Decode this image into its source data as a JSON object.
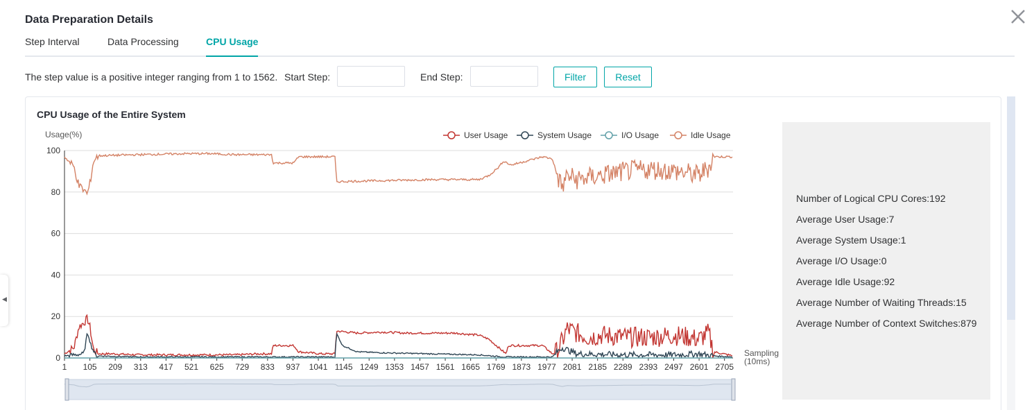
{
  "dialog": {
    "title": "Data Preparation Details",
    "close_icon": "close-icon"
  },
  "tabs": [
    {
      "label": "Step Interval",
      "active": false
    },
    {
      "label": "Data Processing",
      "active": false
    },
    {
      "label": "CPU Usage",
      "active": true
    }
  ],
  "filter": {
    "hint": "The step value is a positive integer ranging from 1 to 1562.",
    "start_label": "Start Step:",
    "start_value": "",
    "end_label": "End Step:",
    "end_value": "",
    "filter_button": "Filter",
    "reset_button": "Reset"
  },
  "card": {
    "title": "CPU Usage of the Entire System"
  },
  "info": [
    "Number of Logical CPU Cores:192",
    "Average User Usage:7",
    "Average System Usage:1",
    "Average I/O Usage:0",
    "Average Idle Usage:92",
    "Average Number of Waiting Threads:15",
    "Average Number of Context Switches:879"
  ],
  "colors": {
    "accent": "#00a5a7",
    "user": "#c23531",
    "system": "#2f4554",
    "io": "#61a0a8",
    "idle": "#d48265"
  },
  "chart_data": {
    "type": "line",
    "title": "",
    "ylabel": "Usage(%)",
    "xlabel": "Sampling\n(10ms)",
    "ylim": [
      0,
      100
    ],
    "yticks": [
      0,
      20,
      40,
      60,
      80,
      100
    ],
    "xlim": [
      1,
      2740
    ],
    "xticks": [
      1,
      105,
      209,
      313,
      417,
      521,
      625,
      729,
      833,
      937,
      1041,
      1145,
      1249,
      1353,
      1457,
      1561,
      1665,
      1769,
      1873,
      1977,
      2081,
      2185,
      2289,
      2393,
      2497,
      2601,
      2705
    ],
    "legend_position": "top-right",
    "grid": true,
    "series": [
      {
        "name": "User Usage",
        "color": "#c23531",
        "x": [
          1,
          40,
          60,
          80,
          95,
          105,
          120,
          140,
          200,
          300,
          400,
          500,
          600,
          700,
          800,
          850,
          855,
          940,
          960,
          1050,
          1100,
          1110,
          1115,
          1200,
          1300,
          1400,
          1500,
          1600,
          1700,
          1740,
          1780,
          1810,
          1820,
          1870,
          1940,
          1960,
          2000,
          2020,
          2040,
          2060,
          2100,
          2150,
          2200,
          2300,
          2400,
          2500,
          2560,
          2600,
          2640,
          2660,
          2700,
          2740
        ],
        "y": [
          2,
          5,
          15,
          17,
          19,
          15,
          4,
          2,
          2,
          1.5,
          1.5,
          1.5,
          1.5,
          1.5,
          2,
          2,
          6,
          6,
          3,
          2,
          2,
          2,
          13,
          12,
          12.5,
          12,
          12,
          12,
          11,
          9,
          5,
          2,
          6,
          6,
          6,
          6,
          2,
          3,
          8,
          14,
          12,
          10,
          11,
          10,
          10,
          11,
          10,
          9,
          12,
          3,
          2,
          1
        ]
      },
      {
        "name": "System Usage",
        "color": "#2f4554",
        "x": [
          1,
          80,
          95,
          100,
          110,
          130,
          300,
          600,
          900,
          1050,
          1110,
          1115,
          1140,
          1200,
          1300,
          1500,
          1700,
          1800,
          2000,
          2020,
          2040,
          2100,
          2300,
          2500,
          2600,
          2660,
          2740
        ],
        "y": [
          1,
          2,
          12,
          11,
          6,
          1,
          0.5,
          0.5,
          0.5,
          0.5,
          0.5,
          12,
          6,
          3,
          2.5,
          2,
          1.5,
          0.5,
          0.5,
          3,
          5,
          2,
          1.5,
          1.5,
          2,
          1,
          0.5
        ]
      },
      {
        "name": "I/O Usage",
        "color": "#61a0a8",
        "x": [
          1,
          2740
        ],
        "y": [
          0,
          0
        ]
      },
      {
        "name": "Idle Usage",
        "color": "#d48265",
        "x": [
          1,
          40,
          60,
          80,
          95,
          105,
          120,
          140,
          300,
          500,
          600,
          700,
          850,
          855,
          940,
          960,
          1100,
          1110,
          1115,
          1300,
          1500,
          1700,
          1740,
          1780,
          1800,
          1830,
          1960,
          2000,
          2020,
          2040,
          2060,
          2100,
          2200,
          2300,
          2400,
          2500,
          2560,
          2600,
          2640,
          2660,
          2700,
          2740
        ],
        "y": [
          97,
          92,
          83,
          81,
          79,
          84,
          95,
          97.5,
          98,
          98.5,
          98.5,
          98,
          98,
          94,
          94,
          97,
          97,
          97,
          85,
          85.5,
          86,
          86,
          88,
          92,
          95,
          93,
          97,
          96,
          88,
          82,
          88,
          86,
          88,
          90,
          91,
          90,
          89,
          88,
          92,
          97,
          97,
          97
        ]
      }
    ]
  }
}
